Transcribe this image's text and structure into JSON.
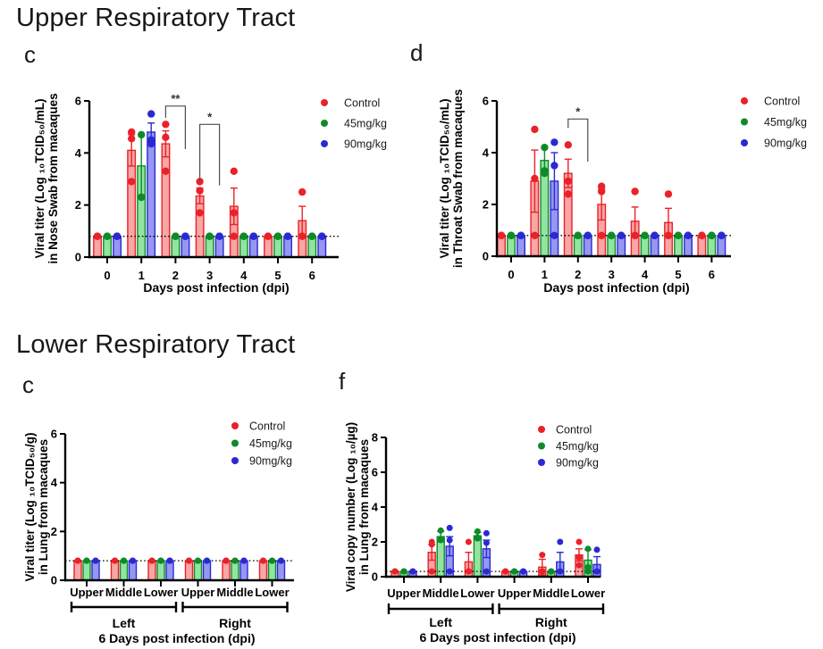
{
  "page": {
    "background": "#ffffff"
  },
  "sections": [
    {
      "title": "Upper Respiratory Tract"
    },
    {
      "title": "Lower Respiratory Tract"
    }
  ],
  "legend_labels": [
    "Control",
    "45mg/kg",
    "90mg/kg"
  ],
  "colors": {
    "control_stroke": "#EB2128",
    "control_fill": "#F8A6A6",
    "mid_dose_stroke": "#0E8B28",
    "mid_dose_fill": "#92E5A0",
    "high_dose_stroke": "#2A2AD4",
    "high_dose_fill": "#9697F0",
    "axis": "#000000",
    "bracket": "#4d4d4d"
  },
  "chart_data": [
    {
      "id": "nose-swab",
      "panel_letter": "c",
      "type": "bar",
      "ylabel_lines": [
        "Viral titer (Log ₁₀TCID₅₀/mL)",
        "in Nose Swab from macaques"
      ],
      "xlabel": "Days post infection (dpi)",
      "categories": [
        "0",
        "1",
        "2",
        "3",
        "4",
        "5",
        "6"
      ],
      "ylim": [
        0,
        6
      ],
      "yticks": [
        0,
        2,
        4,
        6
      ],
      "baseline": 0.8,
      "legend_position": "right",
      "series": [
        {
          "name": "Control",
          "color": "#EB2128",
          "fill": "#F8A6A6",
          "values": [
            0.8,
            4.1,
            4.35,
            2.35,
            1.95,
            0.8,
            1.4
          ],
          "errors": [
            0,
            0.6,
            0.5,
            0.3,
            0.7,
            0,
            0.55
          ],
          "points": [
            [
              0.8,
              0.8,
              0.8
            ],
            [
              4.8,
              4.55,
              2.9
            ],
            [
              5.1,
              4.6,
              3.3
            ],
            [
              2.9,
              2.55,
              1.7
            ],
            [
              3.3,
              1.7,
              0.8
            ],
            [
              0.8,
              0.8,
              0.8
            ],
            [
              2.5,
              0.8,
              0.8
            ]
          ]
        },
        {
          "name": "45mg/kg",
          "color": "#0E8B28",
          "fill": "#92E5A0",
          "values": [
            0.8,
            3.5,
            0.8,
            0.8,
            0.8,
            0.8,
            0.8
          ],
          "errors": [
            0,
            1.2,
            0,
            0,
            0,
            0,
            0
          ],
          "points": [
            [
              0.8,
              0.8,
              0.8
            ],
            [
              4.7,
              2.3,
              2.3
            ],
            [
              0.8,
              0.8,
              0.8
            ],
            [
              0.8,
              0.8,
              0.8
            ],
            [
              0.8,
              0.8,
              0.8
            ],
            [
              0.8,
              0.8,
              0.8
            ],
            [
              0.8,
              0.8,
              0.8
            ]
          ]
        },
        {
          "name": "90mg/kg",
          "color": "#2A2AD4",
          "fill": "#9697F0",
          "values": [
            0.8,
            4.8,
            0.8,
            0.8,
            0.8,
            0.8,
            0.8
          ],
          "errors": [
            0,
            0.35,
            0,
            0,
            0,
            0,
            0
          ],
          "points": [
            [
              0.8,
              0.8,
              0.8
            ],
            [
              5.5,
              4.5,
              4.35
            ],
            [
              0.8,
              0.8,
              0.8
            ],
            [
              0.8,
              0.8,
              0.8
            ],
            [
              0.8,
              0.8,
              0.8
            ],
            [
              0.8,
              0.8,
              0.8
            ],
            [
              0.8,
              0.8,
              0.8
            ]
          ]
        }
      ],
      "sig_brackets": [
        {
          "label": "**",
          "cat": 2,
          "series_a": 0,
          "series_b": 2,
          "top": 5.8,
          "drop_a": 5.35,
          "drop_b": 4.15
        },
        {
          "label": "*",
          "cat": 3,
          "series_a": 0,
          "series_b": 2,
          "top": 5.1,
          "drop_a": 2.95,
          "drop_b": 2.75
        }
      ]
    },
    {
      "id": "throat-swab",
      "panel_letter": "d",
      "type": "bar",
      "ylabel_lines": [
        "Viral titer (Log ₁₀TCID₅₀/mL)",
        "in Throat Swab from macaques"
      ],
      "xlabel": "Days post infection (dpi)",
      "categories": [
        "0",
        "1",
        "2",
        "3",
        "4",
        "5",
        "6"
      ],
      "ylim": [
        0,
        6
      ],
      "yticks": [
        0,
        2,
        4,
        6
      ],
      "baseline": 0.8,
      "legend_position": "right",
      "series": [
        {
          "name": "Control",
          "color": "#EB2128",
          "fill": "#F8A6A6",
          "values": [
            0.8,
            2.9,
            3.2,
            2.0,
            1.35,
            1.3,
            0.8
          ],
          "errors": [
            0,
            1.2,
            0.55,
            0.6,
            0.55,
            0.55,
            0
          ],
          "points": [
            [
              0.8,
              0.8,
              0.8
            ],
            [
              4.9,
              3.0,
              0.8
            ],
            [
              4.3,
              2.9,
              2.4
            ],
            [
              2.7,
              2.5,
              0.8
            ],
            [
              2.5,
              0.8,
              0.8
            ],
            [
              2.4,
              0.8,
              0.8
            ],
            [
              0.8,
              0.8,
              0.8
            ]
          ]
        },
        {
          "name": "45mg/kg",
          "color": "#0E8B28",
          "fill": "#92E5A0",
          "values": [
            0.8,
            3.7,
            0.8,
            0.8,
            0.8,
            0.8,
            0.8
          ],
          "errors": [
            0,
            0.5,
            0,
            0,
            0,
            0,
            0
          ],
          "points": [
            [
              0.8,
              0.8,
              0.8
            ],
            [
              4.2,
              3.3,
              3.2
            ],
            [
              0.8,
              0.8,
              0.8
            ],
            [
              0.8,
              0.8,
              0.8
            ],
            [
              0.8,
              0.8,
              0.8
            ],
            [
              0.8,
              0.8,
              0.8
            ],
            [
              0.8,
              0.8,
              0.8
            ]
          ]
        },
        {
          "name": "90mg/kg",
          "color": "#2A2AD4",
          "fill": "#9697F0",
          "values": [
            0.8,
            2.9,
            0.8,
            0.8,
            0.8,
            0.8,
            0.8
          ],
          "errors": [
            0,
            1.1,
            0,
            0,
            0,
            0,
            0
          ],
          "points": [
            [
              0.8,
              0.8,
              0.8
            ],
            [
              4.4,
              3.5,
              0.8
            ],
            [
              0.8,
              0.8,
              0.8
            ],
            [
              0.8,
              0.8,
              0.8
            ],
            [
              0.8,
              0.8,
              0.8
            ],
            [
              0.8,
              0.8,
              0.8
            ],
            [
              0.8,
              0.8,
              0.8
            ]
          ]
        }
      ],
      "sig_brackets": [
        {
          "label": "*",
          "cat": 2,
          "series_a": 0,
          "series_b": 2,
          "top": 5.3,
          "drop_a": 4.95,
          "drop_b": 3.65
        }
      ]
    },
    {
      "id": "lung-titer",
      "panel_letter": "c",
      "type": "bar",
      "ylabel_lines": [
        "Viral titer (Log ₁₀TCID₅₀/g)",
        "in Lung from macaques"
      ],
      "xlabel": "6 Days post infection (dpi)",
      "categories": [
        "Upper",
        "Middle",
        "Lower",
        "Upper",
        "Middle",
        "Lower"
      ],
      "group_brackets": [
        {
          "label": "Left",
          "from": 0,
          "to": 2
        },
        {
          "label": "Right",
          "from": 3,
          "to": 5
        }
      ],
      "ylim": [
        0,
        6
      ],
      "yticks": [
        0,
        2,
        4,
        6
      ],
      "baseline": 0.8,
      "legend_position": "inside-top-right",
      "series": [
        {
          "name": "Control",
          "color": "#EB2128",
          "fill": "#F8A6A6",
          "values": [
            0.8,
            0.8,
            0.8,
            0.8,
            0.8,
            0.8
          ],
          "errors": [
            0,
            0,
            0,
            0,
            0,
            0
          ],
          "points": [
            [
              0.8,
              0.8,
              0.8
            ],
            [
              0.8,
              0.8,
              0.8
            ],
            [
              0.8,
              0.8,
              0.8
            ],
            [
              0.8,
              0.8,
              0.8
            ],
            [
              0.8,
              0.8,
              0.8
            ],
            [
              0.8,
              0.8,
              0.8
            ]
          ]
        },
        {
          "name": "45mg/kg",
          "color": "#0E8B28",
          "fill": "#92E5A0",
          "values": [
            0.8,
            0.8,
            0.8,
            0.8,
            0.8,
            0.8
          ],
          "errors": [
            0,
            0,
            0,
            0,
            0,
            0
          ],
          "points": [
            [
              0.8,
              0.8,
              0.8
            ],
            [
              0.8,
              0.8,
              0.8
            ],
            [
              0.8,
              0.8,
              0.8
            ],
            [
              0.8,
              0.8,
              0.8
            ],
            [
              0.8,
              0.8,
              0.8
            ],
            [
              0.8,
              0.8,
              0.8
            ]
          ]
        },
        {
          "name": "90mg/kg",
          "color": "#2A2AD4",
          "fill": "#9697F0",
          "values": [
            0.8,
            0.8,
            0.8,
            0.8,
            0.8,
            0.8
          ],
          "errors": [
            0,
            0,
            0,
            0,
            0,
            0
          ],
          "points": [
            [
              0.8,
              0.8,
              0.8
            ],
            [
              0.8,
              0.8,
              0.8
            ],
            [
              0.8,
              0.8,
              0.8
            ],
            [
              0.8,
              0.8,
              0.8
            ],
            [
              0.8,
              0.8,
              0.8
            ],
            [
              0.8,
              0.8,
              0.8
            ]
          ]
        }
      ],
      "sig_brackets": []
    },
    {
      "id": "lung-copy-number",
      "panel_letter": "f",
      "type": "bar",
      "ylabel_lines": [
        "Viral copy number (Log ₁₀/µg)",
        "in Lung from macaques"
      ],
      "xlabel": "6 Days post infection (dpi)",
      "categories": [
        "Upper",
        "Middle",
        "Lower",
        "Upper",
        "Middle",
        "Lower"
      ],
      "group_brackets": [
        {
          "label": "Left",
          "from": 0,
          "to": 2
        },
        {
          "label": "Right",
          "from": 3,
          "to": 5
        }
      ],
      "ylim": [
        0,
        8
      ],
      "yticks": [
        0,
        2,
        4,
        6,
        8
      ],
      "baseline": 0.3,
      "legend_position": "inside-top-right",
      "series": [
        {
          "name": "Control",
          "color": "#EB2128",
          "fill": "#F8A6A6",
          "values": [
            0.3,
            1.4,
            0.85,
            0.3,
            0.55,
            1.25
          ],
          "errors": [
            0,
            0.45,
            0.55,
            0,
            0.45,
            0.35
          ],
          "points": [
            [
              0.3,
              0.3,
              0.3
            ],
            [
              2.0,
              1.85,
              0.3
            ],
            [
              2.0,
              0.3,
              0.3
            ],
            [
              0.3,
              0.3,
              0.3
            ],
            [
              1.25,
              0.3,
              0.3
            ],
            [
              2.0,
              1.1,
              0.65
            ]
          ]
        },
        {
          "name": "45mg/kg",
          "color": "#0E8B28",
          "fill": "#92E5A0",
          "values": [
            0.3,
            2.3,
            2.35,
            0.3,
            0.3,
            0.95
          ],
          "errors": [
            0,
            0.3,
            0.2,
            0,
            0,
            0.6
          ],
          "points": [
            [
              0.3,
              0.3,
              0.3
            ],
            [
              2.65,
              2.15,
              2.1
            ],
            [
              2.6,
              2.25,
              2.2
            ],
            [
              0.3,
              0.3,
              0.3
            ],
            [
              0.3,
              0.3,
              0.3
            ],
            [
              1.6,
              0.55,
              0.3
            ]
          ]
        },
        {
          "name": "90mg/kg",
          "color": "#2A2AD4",
          "fill": "#9697F0",
          "values": [
            0.3,
            1.75,
            1.6,
            0.3,
            0.85,
            0.7
          ],
          "errors": [
            0,
            0.55,
            0.5,
            0,
            0.55,
            0.45
          ],
          "points": [
            [
              0.3,
              0.3,
              0.3
            ],
            [
              2.8,
              2.1,
              0.3
            ],
            [
              2.5,
              1.95,
              0.3
            ],
            [
              0.3,
              0.3,
              0.3
            ],
            [
              2.0,
              0.3,
              0.3
            ],
            [
              1.55,
              0.3,
              0.3
            ]
          ]
        }
      ],
      "sig_brackets": []
    }
  ]
}
